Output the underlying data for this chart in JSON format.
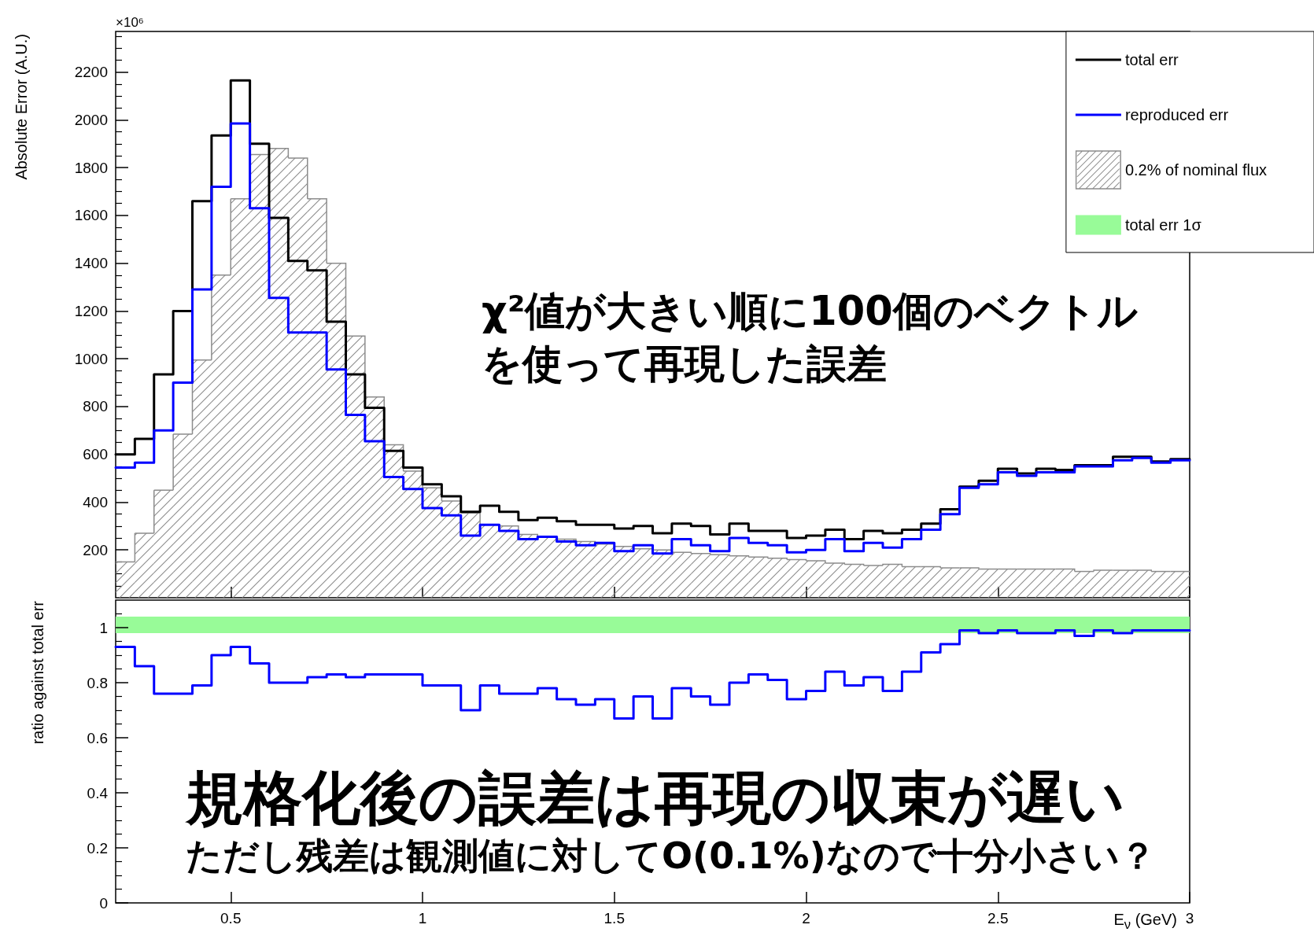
{
  "chart_data": [
    {
      "type": "histogram",
      "ylabel": "Absolute Error (A.U.)",
      "annotations": [
        "×10⁶",
        "χ²値が大きい順に100個のベクトルを使って再現した誤差"
      ],
      "bins": [
        0.2,
        0.25,
        0.3,
        0.35,
        0.4,
        0.45,
        0.5,
        0.55,
        0.6,
        0.65,
        0.7,
        0.75,
        0.8,
        0.85,
        0.9,
        0.95,
        1,
        1.05,
        1.1,
        1.15,
        1.2,
        1.25,
        1.3,
        1.35,
        1.4,
        1.45,
        1.5,
        1.55,
        1.6,
        1.65,
        1.7,
        1.75,
        1.8,
        1.85,
        1.9,
        1.95,
        2,
        2.05,
        2.1,
        2.15,
        2.2,
        2.25,
        2.3,
        2.35,
        2.4,
        2.45,
        2.5,
        2.55,
        2.6,
        2.65,
        2.7,
        2.75,
        2.8,
        2.85,
        2.9,
        2.95,
        3
      ],
      "series": [
        {
          "name": "total err",
          "type": "step",
          "color": "#000000",
          "x": [
            0.2,
            0.25,
            0.3,
            0.35,
            0.4,
            0.45,
            0.5,
            0.55,
            0.6,
            0.65,
            0.7,
            0.75,
            0.8,
            0.85,
            0.9,
            0.95,
            1,
            1.05,
            1.1,
            1.15,
            1.2,
            1.25,
            1.3,
            1.35,
            1.4,
            1.45,
            1.5,
            1.55,
            1.6,
            1.65,
            1.7,
            1.75,
            1.8,
            1.85,
            1.9,
            1.95,
            2,
            2.05,
            2.1,
            2.15,
            2.2,
            2.25,
            2.3,
            2.35,
            2.4,
            2.45,
            2.5,
            2.55,
            2.6,
            2.65,
            2.7,
            2.75,
            2.8,
            2.85,
            2.9,
            2.95,
            3
          ],
          "values": [
            600,
            665,
            935,
            1200,
            1660,
            1935,
            2165,
            1900,
            1590,
            1410,
            1370,
            1155,
            935,
            795,
            615,
            545,
            475,
            425,
            360,
            385,
            360,
            325,
            335,
            320,
            305,
            305,
            290,
            300,
            270,
            310,
            300,
            265,
            310,
            280,
            280,
            250,
            260,
            285,
            245,
            280,
            270,
            285,
            310,
            370,
            465,
            490,
            540,
            520,
            540,
            535,
            555,
            555,
            590,
            590,
            570,
            580,
            580
          ]
        },
        {
          "name": "reproduced err",
          "type": "step",
          "color": "#0000ff",
          "x": [
            0.2,
            0.25,
            0.3,
            0.35,
            0.4,
            0.45,
            0.5,
            0.55,
            0.6,
            0.65,
            0.7,
            0.75,
            0.8,
            0.85,
            0.9,
            0.95,
            1,
            1.05,
            1.1,
            1.15,
            1.2,
            1.25,
            1.3,
            1.35,
            1.4,
            1.45,
            1.5,
            1.55,
            1.6,
            1.65,
            1.7,
            1.75,
            1.8,
            1.85,
            1.9,
            1.95,
            2,
            2.05,
            2.1,
            2.15,
            2.2,
            2.25,
            2.3,
            2.35,
            2.4,
            2.45,
            2.5,
            2.55,
            2.6,
            2.65,
            2.7,
            2.75,
            2.8,
            2.85,
            2.9,
            2.95,
            3
          ],
          "values": [
            545,
            565,
            700,
            900,
            1290,
            1720,
            1985,
            1630,
            1255,
            1110,
            1110,
            955,
            765,
            655,
            505,
            455,
            375,
            345,
            260,
            305,
            280,
            245,
            255,
            235,
            220,
            230,
            195,
            220,
            185,
            245,
            220,
            195,
            250,
            230,
            220,
            190,
            200,
            245,
            195,
            230,
            210,
            245,
            285,
            350,
            460,
            475,
            525,
            510,
            525,
            525,
            550,
            550,
            575,
            585,
            565,
            575,
            575
          ]
        },
        {
          "name": "0.2% of nominal flux",
          "color": "#8c8c8c",
          "values": [
            150,
            270,
            450,
            685,
            995,
            1350,
            1670,
            1855,
            1880,
            1840,
            1670,
            1400,
            1095,
            840,
            640,
            530,
            460,
            405,
            355,
            305,
            300,
            265,
            255,
            245,
            235,
            225,
            215,
            205,
            200,
            190,
            185,
            180,
            175,
            170,
            165,
            160,
            155,
            145,
            140,
            135,
            140,
            130,
            130,
            125,
            125,
            120,
            120,
            120,
            120,
            120,
            110,
            115,
            115,
            115,
            110,
            110
          ]
        }
      ],
      "xlim": [
        0.2,
        3
      ],
      "xticks": [
        0.5,
        1,
        1.5,
        2,
        2.5,
        3
      ],
      "ylim": [
        0,
        2370
      ],
      "yticks": [
        200,
        400,
        600,
        800,
        1000,
        1200,
        1400,
        1600,
        1800,
        2000,
        2200
      ],
      "tick_labels": "y"
    },
    {
      "type": "step",
      "xlabel": "E$_{ν}$ (GeV)",
      "ylabel": "ratio against total err",
      "annotations": [
        "規格化後の誤差は再現の収束が遅い",
        "ただし残差は観測値に対してO(0.1%)なので十分小さい？"
      ],
      "x": [
        0.2,
        0.25,
        0.3,
        0.35,
        0.4,
        0.45,
        0.5,
        0.55,
        0.6,
        0.65,
        0.7,
        0.75,
        0.8,
        0.85,
        0.9,
        0.95,
        1,
        1.05,
        1.1,
        1.15,
        1.2,
        1.25,
        1.3,
        1.35,
        1.4,
        1.45,
        1.5,
        1.55,
        1.6,
        1.65,
        1.7,
        1.75,
        1.8,
        1.85,
        1.9,
        1.95,
        2,
        2.05,
        2.1,
        2.15,
        2.2,
        2.25,
        2.3,
        2.35,
        2.4,
        2.45,
        2.5,
        2.55,
        2.6,
        2.65,
        2.7,
        2.75,
        2.8,
        2.85,
        2.9,
        2.95,
        3
      ],
      "series": [
        {
          "color": "#0000ff",
          "values": [
            0.93,
            0.86,
            0.76,
            0.76,
            0.79,
            0.9,
            0.93,
            0.87,
            0.8,
            0.8,
            0.82,
            0.83,
            0.82,
            0.83,
            0.83,
            0.83,
            0.79,
            0.79,
            0.7,
            0.79,
            0.76,
            0.76,
            0.78,
            0.74,
            0.72,
            0.74,
            0.67,
            0.75,
            0.67,
            0.78,
            0.75,
            0.72,
            0.8,
            0.83,
            0.81,
            0.74,
            0.77,
            0.84,
            0.79,
            0.82,
            0.77,
            0.84,
            0.91,
            0.94,
            0.99,
            0.98,
            0.99,
            0.98,
            0.98,
            0.99,
            0.97,
            0.99,
            0.98,
            0.99,
            0.99,
            0.99,
            0.99
          ]
        }
      ],
      "bands": [
        {
          "axis": "y",
          "from": 0.98,
          "to": 1.04,
          "label": "total err 1σ",
          "color": "#98fb98"
        }
      ],
      "xlim": [
        0.2,
        3
      ],
      "xticks": [
        0.5,
        1,
        1.5,
        2,
        2.5,
        3
      ],
      "ylim": [
        0,
        1.1
      ],
      "yticks": [
        0,
        0.2,
        0.4,
        0.6,
        0.8,
        1
      ],
      "legend": "top right"
    }
  ]
}
